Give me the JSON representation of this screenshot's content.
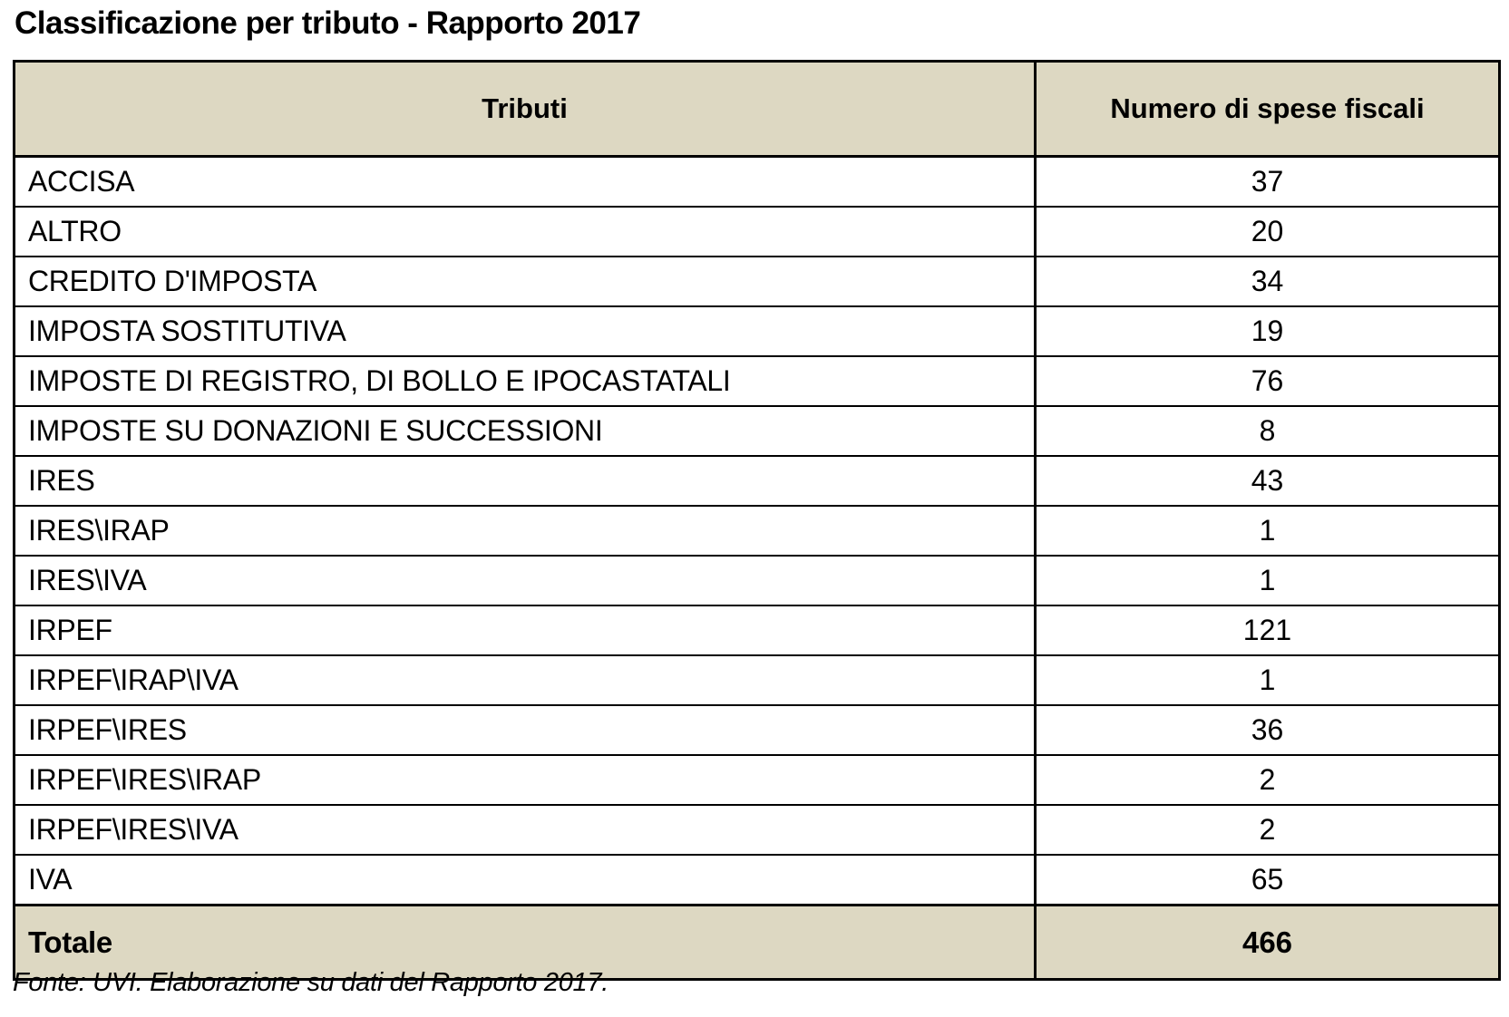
{
  "title": "Classificazione per tributo - Rapporto 2017",
  "table": {
    "columns": {
      "tributi": "Tributi",
      "numero": "Numero di spese fiscali"
    },
    "rows": [
      {
        "tributo": "ACCISA",
        "numero": 37
      },
      {
        "tributo": "ALTRO",
        "numero": 20
      },
      {
        "tributo": "CREDITO D'IMPOSTA",
        "numero": 34
      },
      {
        "tributo": "IMPOSTA SOSTITUTIVA",
        "numero": 19
      },
      {
        "tributo": "IMPOSTE DI REGISTRO, DI BOLLO E IPOCASTATALI",
        "numero": 76
      },
      {
        "tributo": "IMPOSTE SU DONAZIONI E SUCCESSIONI",
        "numero": 8
      },
      {
        "tributo": "IRES",
        "numero": 43
      },
      {
        "tributo": "IRES\\IRAP",
        "numero": 1
      },
      {
        "tributo": "IRES\\IVA",
        "numero": 1
      },
      {
        "tributo": "IRPEF",
        "numero": 121
      },
      {
        "tributo": "IRPEF\\IRAP\\IVA",
        "numero": 1
      },
      {
        "tributo": "IRPEF\\IRES",
        "numero": 36
      },
      {
        "tributo": "IRPEF\\IRES\\IRAP",
        "numero": 2
      },
      {
        "tributo": "IRPEF\\IRES\\IVA",
        "numero": 2
      },
      {
        "tributo": "IVA",
        "numero": 65
      }
    ],
    "total": {
      "label": "Totale",
      "value": 466
    }
  },
  "footer": "Fonte: UVI. Elaborazione su dati del Rapporto 2017.",
  "colors": {
    "header_bg": "#ddd8c2",
    "border": "#000000",
    "page_bg": "#ffffff",
    "text": "#000000"
  }
}
